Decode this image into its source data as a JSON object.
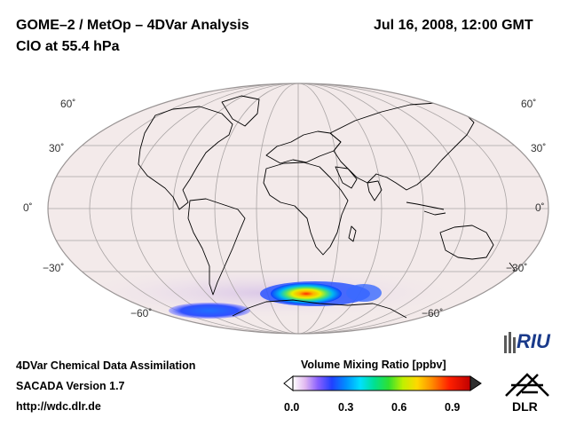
{
  "header": {
    "title_left_line1": "GOME–2 / MetOp – 4DVar Analysis",
    "title_left_line2": "ClO at 55.4 hPa",
    "title_right": "Jul 16, 2008, 12:00 GMT"
  },
  "map": {
    "projection": "Mollweide",
    "lat_labels": [
      "60˚",
      "30˚",
      "0˚",
      "−30˚",
      "−60˚"
    ],
    "background_color": "#f3eaea"
  },
  "footer": {
    "line1": "4DVar Chemical Data Assimilation",
    "line2": "SACADA Version 1.7",
    "line3": "http://wdc.dlr.de"
  },
  "colorbar": {
    "title": "Volume Mixing Ratio [ppbv]",
    "ticks": [
      "0.0",
      "0.3",
      "0.6",
      "0.9"
    ],
    "min": 0.0,
    "max": 1.0
  },
  "logos": {
    "riu": "RIU",
    "dlr": "DLR"
  }
}
